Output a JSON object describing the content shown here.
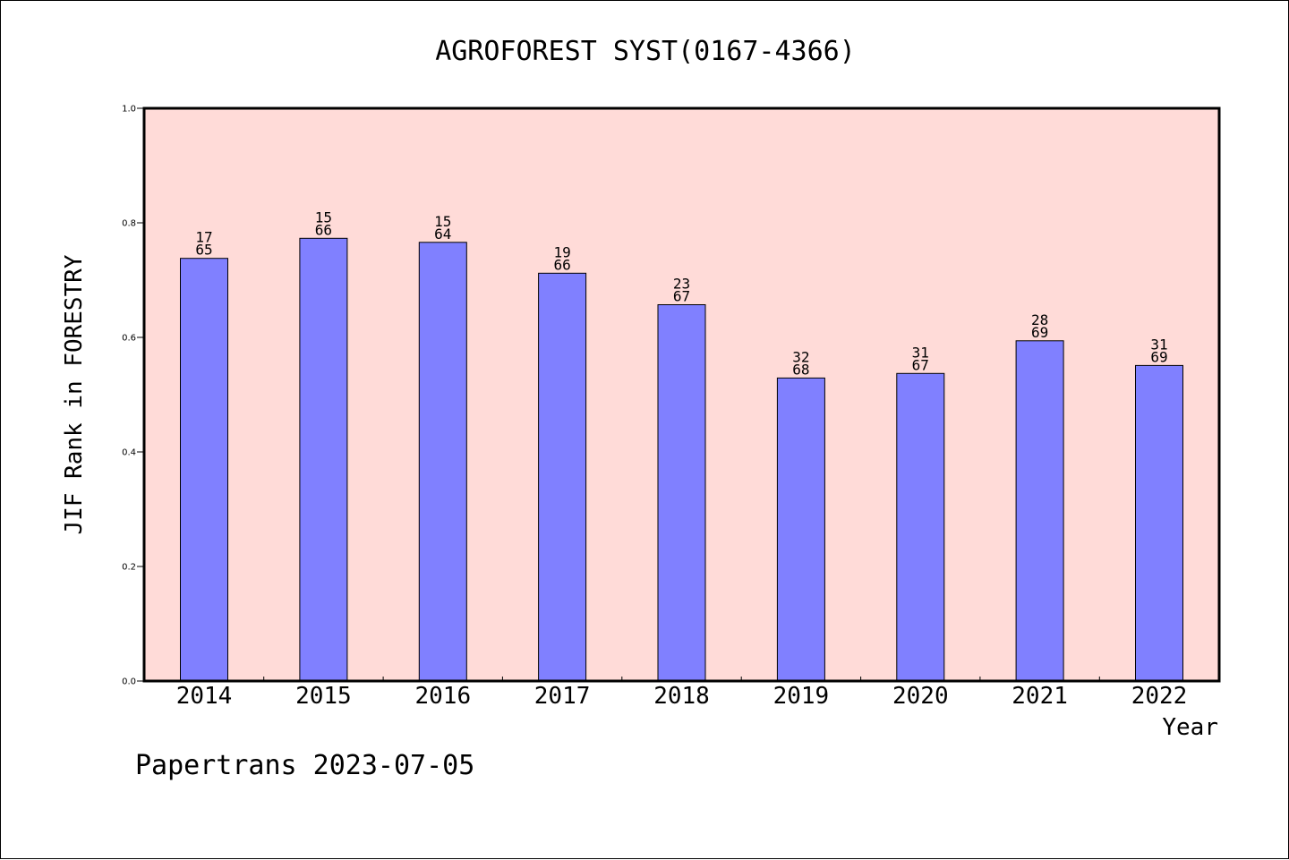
{
  "chart_data": {
    "type": "bar",
    "title": "AGROFOREST SYST(0167-4366)",
    "xlabel": "Year",
    "ylabel": "JIF Rank in FORESTRY",
    "categories": [
      "2014",
      "2015",
      "2016",
      "2017",
      "2018",
      "2019",
      "2020",
      "2021",
      "2022"
    ],
    "values": [
      0.738,
      0.773,
      0.766,
      0.712,
      0.657,
      0.529,
      0.537,
      0.594,
      0.551
    ],
    "ranks": [
      "17",
      "15",
      "15",
      "19",
      "23",
      "32",
      "31",
      "28",
      "31"
    ],
    "totals": [
      "65",
      "66",
      "64",
      "66",
      "67",
      "68",
      "67",
      "69",
      "69"
    ],
    "ylim": [
      0.0,
      1.0
    ],
    "yticks": [
      "0.0",
      "0.2",
      "0.4",
      "0.6",
      "0.8",
      "1.0"
    ],
    "grid": false,
    "colors": {
      "bar": "#8080ff",
      "plot_background": "#ffdbd8",
      "bar_edge": "#000000"
    }
  },
  "footer": "Papertrans 2023-07-05"
}
